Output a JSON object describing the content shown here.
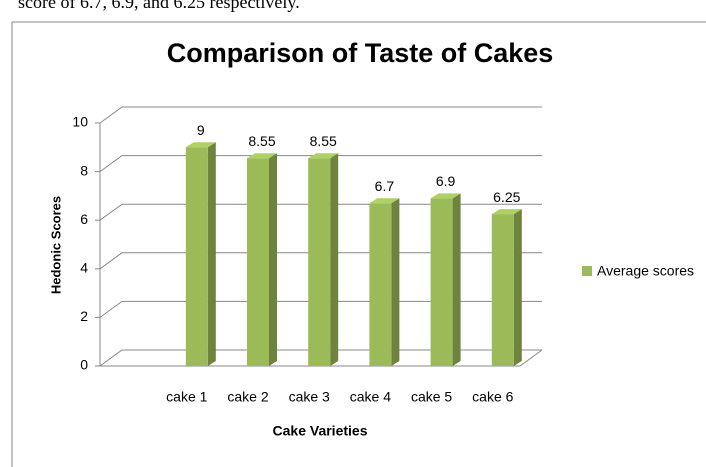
{
  "caption_text": "score of 6.7, 6.9, and 6.25 respectively.",
  "chart_data": {
    "type": "bar3d",
    "title": "Comparison of Taste of Cakes",
    "x_label": "Cake Varieties",
    "y_label": "Hedonic Scores",
    "categories": [
      null,
      "cake 1",
      "cake 2",
      "cake 3",
      "cake 4",
      "cake 5",
      "cake 6"
    ],
    "series": [
      {
        "name": "Average scores",
        "color": "#9bbb59",
        "values": [
          null,
          9,
          8.55,
          8.55,
          6.7,
          6.9,
          6.25
        ]
      }
    ],
    "ylim": [
      0,
      10
    ],
    "yticks": [
      0,
      2,
      4,
      6,
      8,
      10
    ],
    "grid": true,
    "legend": "right"
  }
}
